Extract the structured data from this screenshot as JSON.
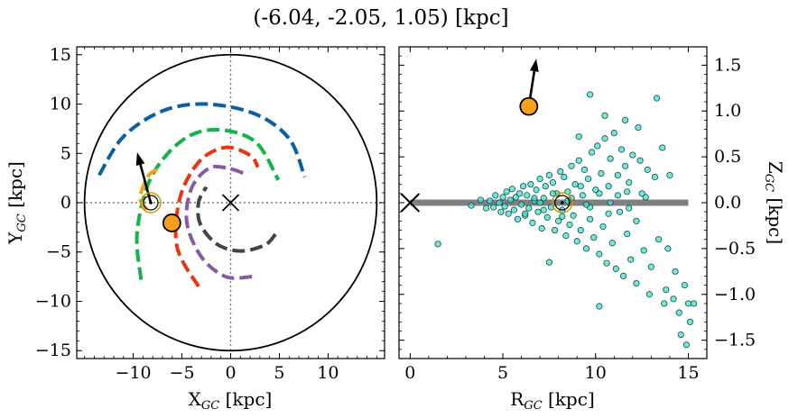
{
  "title": "(-6.04, -2.05, 1.05) [kpc]",
  "chart_data": [
    {
      "panel": "left",
      "type": "scatter",
      "xlabel": "X$_{GC}$ [kpc]",
      "ylabel": "Y$_{GC}$ [kpc]",
      "xlabel_main": "X",
      "xlabel_sub": "GC",
      "xlabel_unit": " [kpc]",
      "ylabel_main": "Y",
      "ylabel_sub": "GC",
      "ylabel_unit": " [kpc]",
      "xlim": [
        -15.8,
        15.8
      ],
      "ylim": [
        -15.8,
        15.8
      ],
      "xticks": [
        -10,
        -5,
        0,
        5,
        10
      ],
      "yticks": [
        -15,
        -10,
        -5,
        0,
        5,
        10,
        15
      ],
      "xtick_labels": [
        "−10",
        "−5",
        "0",
        "5",
        "10"
      ],
      "ytick_labels": [
        "−15",
        "−10",
        "−5",
        "0",
        "5",
        "10",
        "15"
      ],
      "galaxy_radius": 15,
      "galactic_center": [
        0,
        0
      ],
      "sun": [
        -8.2,
        0
      ],
      "object": [
        -6.04,
        -2.05
      ],
      "velocity_arrow": {
        "from": [
          -8.2,
          0
        ],
        "to": [
          -9.6,
          5.1
        ]
      },
      "spiral_arms": [
        {
          "color": "#0a5fa0",
          "points": [
            [
              -13.5,
              2.8
            ],
            [
              -11.0,
              6.7
            ],
            [
              -7.0,
              9.3
            ],
            [
              -2.5,
              10.0
            ],
            [
              2.5,
              9.0
            ],
            [
              6.0,
              6.5
            ],
            [
              7.6,
              2.6
            ]
          ]
        },
        {
          "color": "#11b34b",
          "points": [
            [
              -9.2,
              -7.8
            ],
            [
              -9.6,
              -3.0
            ],
            [
              -8.2,
              2.5
            ],
            [
              -5.0,
              6.3
            ],
            [
              -1.5,
              7.4
            ],
            [
              2.5,
              6.2
            ],
            [
              4.9,
              2.3
            ]
          ]
        },
        {
          "color": "#ee3311",
          "points": [
            [
              -3.3,
              -8.5
            ],
            [
              -5.5,
              -4.5
            ],
            [
              -5.2,
              0.5
            ],
            [
              -3.2,
              4.2
            ],
            [
              -0.5,
              5.6
            ],
            [
              2.0,
              4.8
            ],
            [
              2.8,
              3.6
            ]
          ]
        },
        {
          "color": "#8a5a9e",
          "points": [
            [
              2.2,
              -7.5
            ],
            [
              -0.5,
              -7.5
            ],
            [
              -3.0,
              -5.5
            ],
            [
              -4.5,
              -2.0
            ],
            [
              -4.0,
              1.5
            ],
            [
              -2.2,
              3.5
            ],
            [
              -0.3,
              3.5
            ],
            [
              1.3,
              3.0
            ]
          ]
        },
        {
          "color": "#444444",
          "points": [
            [
              4.6,
              -3.2
            ],
            [
              3.5,
              -4.3
            ],
            [
              1.0,
              -4.9
            ],
            [
              -1.4,
              -4.2
            ],
            [
              -3.1,
              -2.2
            ],
            [
              -3.3,
              0.0
            ],
            [
              -2.5,
              1.6
            ]
          ]
        },
        {
          "color": "#f0a020",
          "points": [
            [
              -8.6,
              -0.7
            ],
            [
              -9.3,
              0.5
            ],
            [
              -8.4,
              2.8
            ],
            [
              -7.3,
              3.4
            ]
          ]
        }
      ]
    },
    {
      "panel": "right",
      "type": "scatter",
      "xlabel": "R$_{GC}$ [kpc]",
      "ylabel": "Z$_{GC}$ [kpc]",
      "xlabel_main": "R",
      "xlabel_sub": "GC",
      "xlabel_unit": " [kpc]",
      "ylabel_main": "Z",
      "ylabel_sub": "GC",
      "ylabel_unit": " [kpc]",
      "xlim": [
        -0.6,
        16.0
      ],
      "ylim": [
        -1.7,
        1.7
      ],
      "xticks": [
        0,
        5,
        10,
        15
      ],
      "yticks": [
        -1.5,
        -1.0,
        -0.5,
        0.0,
        0.5,
        1.0,
        1.5
      ],
      "xtick_labels": [
        "0",
        "5",
        "10",
        "15"
      ],
      "ytick_labels": [
        "−1.5",
        "−1.0",
        "−0.5",
        "0.0",
        "0.5",
        "1.0",
        "1.5"
      ],
      "disk_plane": {
        "z": 0,
        "x_range": [
          0,
          15
        ],
        "color": "#808080"
      },
      "galactic_center": [
        0,
        0
      ],
      "sun": [
        8.2,
        0
      ],
      "object": [
        6.4,
        1.05
      ],
      "velocity_arrow": {
        "from": [
          6.4,
          1.05
        ],
        "to": [
          6.8,
          1.57
        ]
      },
      "stars_color": "#40e0d0",
      "stars": [
        [
          1.5,
          -0.45
        ],
        [
          3.3,
          -0.03
        ],
        [
          3.8,
          0.03
        ],
        [
          4.1,
          -0.06
        ],
        [
          4.3,
          0.02
        ],
        [
          4.5,
          -0.05
        ],
        [
          4.6,
          0.08
        ],
        [
          4.8,
          0.0
        ],
        [
          4.9,
          -0.1
        ],
        [
          5.0,
          0.06
        ],
        [
          5.1,
          -0.04
        ],
        [
          5.2,
          0.12
        ],
        [
          5.3,
          -0.12
        ],
        [
          5.4,
          0.03
        ],
        [
          5.5,
          0.15
        ],
        [
          5.6,
          -0.08
        ],
        [
          5.7,
          0.06
        ],
        [
          5.8,
          -0.18
        ],
        [
          5.9,
          0.1
        ],
        [
          6.0,
          -0.02
        ],
        [
          6.1,
          0.18
        ],
        [
          6.2,
          -0.14
        ],
        [
          6.3,
          0.08
        ],
        [
          6.4,
          -0.06
        ],
        [
          6.5,
          0.2
        ],
        [
          6.6,
          -0.22
        ],
        [
          6.7,
          0.02
        ],
        [
          6.8,
          0.14
        ],
        [
          6.9,
          -0.1
        ],
        [
          7.0,
          0.26
        ],
        [
          7.1,
          -0.28
        ],
        [
          7.2,
          0.05
        ],
        [
          7.3,
          0.18
        ],
        [
          7.4,
          -0.16
        ],
        [
          7.5,
          0.3
        ],
        [
          7.6,
          -0.05
        ],
        [
          7.7,
          0.22
        ],
        [
          7.8,
          -0.3
        ],
        [
          7.9,
          0.1
        ],
        [
          8.0,
          -0.2
        ],
        [
          8.1,
          0.34
        ],
        [
          8.2,
          -0.08
        ],
        [
          8.3,
          0.28
        ],
        [
          8.4,
          -0.36
        ],
        [
          8.5,
          0.12
        ],
        [
          8.6,
          -0.24
        ],
        [
          8.7,
          0.4
        ],
        [
          8.8,
          -0.14
        ],
        [
          8.9,
          0.2
        ],
        [
          9.0,
          -0.42
        ],
        [
          9.1,
          0.46
        ],
        [
          9.2,
          -0.3
        ],
        [
          9.3,
          0.08
        ],
        [
          9.4,
          0.36
        ],
        [
          9.5,
          -0.5
        ],
        [
          9.6,
          0.26
        ],
        [
          9.7,
          -0.18
        ],
        [
          9.8,
          0.55
        ],
        [
          9.9,
          -0.38
        ],
        [
          10.0,
          0.14
        ],
        [
          10.1,
          0.62
        ],
        [
          10.2,
          -0.56
        ],
        [
          10.3,
          0.32
        ],
        [
          10.4,
          -0.26
        ],
        [
          10.5,
          0.7
        ],
        [
          10.6,
          -0.66
        ],
        [
          10.7,
          0.18
        ],
        [
          10.8,
          0.48
        ],
        [
          10.9,
          -0.44
        ],
        [
          11.0,
          0.76
        ],
        [
          11.1,
          -0.72
        ],
        [
          11.2,
          0.3
        ],
        [
          11.3,
          -0.1
        ],
        [
          11.4,
          0.58
        ],
        [
          11.5,
          -0.8
        ],
        [
          11.6,
          0.4
        ],
        [
          11.7,
          -0.34
        ],
        [
          11.8,
          0.22
        ],
        [
          11.9,
          -0.62
        ],
        [
          12.0,
          0.52
        ],
        [
          12.2,
          -0.88
        ],
        [
          12.4,
          0.46
        ],
        [
          12.6,
          -0.52
        ],
        [
          12.8,
          0.36
        ],
        [
          13.0,
          -0.7
        ],
        [
          13.2,
          0.28
        ],
        [
          13.4,
          -0.4
        ],
        [
          13.6,
          0.6
        ],
        [
          13.8,
          -0.95
        ],
        [
          14.0,
          0.3
        ],
        [
          9.7,
          1.18
        ],
        [
          10.5,
          0.95
        ],
        [
          11.6,
          0.9
        ],
        [
          13.3,
          1.14
        ],
        [
          12.3,
          0.82
        ],
        [
          9.1,
          0.72
        ],
        [
          14.2,
          -1.05
        ],
        [
          14.5,
          -1.2
        ],
        [
          14.8,
          -0.9
        ],
        [
          15.0,
          -1.1
        ],
        [
          15.3,
          -1.1
        ],
        [
          14.6,
          -1.44
        ],
        [
          14.9,
          -1.55
        ],
        [
          15.1,
          -1.3
        ],
        [
          14.3,
          -0.75
        ],
        [
          13.7,
          -1.1
        ],
        [
          12.9,
          -1.0
        ],
        [
          10.2,
          -1.13
        ],
        [
          7.5,
          -0.65
        ],
        [
          13.9,
          -0.5
        ],
        [
          6.2,
          -0.12
        ],
        [
          6.7,
          0.05
        ],
        [
          7.2,
          -0.08
        ],
        [
          7.7,
          0.1
        ],
        [
          8.2,
          -0.15
        ],
        [
          8.7,
          0.05
        ],
        [
          9.2,
          0.18
        ],
        [
          9.7,
          -0.05
        ],
        [
          10.2,
          0.1
        ],
        [
          10.7,
          -0.12
        ],
        [
          11.2,
          0.08
        ],
        [
          11.7,
          0.12
        ],
        [
          12.2,
          -0.2
        ],
        [
          12.7,
          0.06
        ],
        [
          7.0,
          0.0
        ],
        [
          8.5,
          0.02
        ],
        [
          9.5,
          -0.02
        ],
        [
          10.8,
          0.0
        ],
        [
          11.8,
          -0.06
        ],
        [
          12.5,
          0.1
        ]
      ]
    }
  ]
}
